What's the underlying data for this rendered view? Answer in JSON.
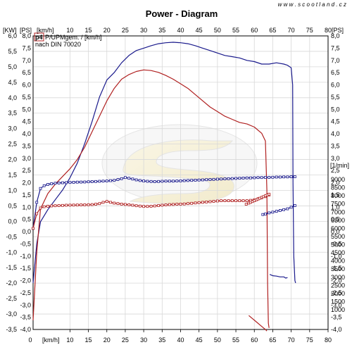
{
  "chart_data": {
    "type": "line",
    "title": "Power - Diagram",
    "watermark": "w w w . s c o o t l a n d . c z",
    "legend_tag": "p4",
    "legend_lines": [
      "P/UPMgem. / [km/h]",
      "nach DIN 70020"
    ],
    "x_unit": "[km/h]",
    "y_kw_unit": "[KW]",
    "y_ps_unit": "[PS]",
    "rpm_unit": "[1/min]",
    "xlim": [
      0,
      80
    ],
    "x_ticks": [
      "10",
      "15",
      "20",
      "25",
      "30",
      "35",
      "40",
      "45",
      "50",
      "55",
      "60",
      "65",
      "70",
      "75",
      "80"
    ],
    "y_kw_range": [
      -3.5,
      6.0
    ],
    "y_kw_ticks": [
      "6,0",
      "5,5",
      "5,0",
      "4,5",
      "4,0",
      "3,5",
      "3,0",
      "2,5",
      "2,0",
      "1,5",
      "1,0",
      "0,5",
      "0,0",
      "-0,5",
      "-1,0",
      "-1,5",
      "-2,0",
      "-2,5",
      "-3,0",
      "-3,5"
    ],
    "y_ps_range": [
      -4.0,
      8.0
    ],
    "y_ps_ticks": [
      "8,0",
      "7,5",
      "7,0",
      "6,5",
      "6,0",
      "5,5",
      "5,0",
      "4,5",
      "4,0",
      "3,5",
      "3,0",
      "2,5",
      "2,0",
      "1,5",
      "1,0",
      "0,5",
      "0,0",
      "-0,5",
      "-1,0",
      "-1,5",
      "-2,0",
      "-2,5",
      "-3,0",
      "-3,5",
      "-4,0"
    ],
    "rpm_range": [
      1000,
      9000
    ],
    "rpm_ticks": [
      "9000",
      "8500",
      "8000",
      "7500",
      "7000",
      "6500",
      "6000",
      "5500",
      "5000",
      "4500",
      "4000",
      "3500",
      "3000",
      "2500",
      "2000",
      "1500",
      "1000"
    ],
    "grid": true,
    "colors": {
      "power": "#1a1a8c",
      "torque": "#b02020",
      "grid": "#d8d8d8",
      "axis": "#000000",
      "tag": "#b02020"
    },
    "series": [
      {
        "key": "power_ps",
        "color": "#1a1a8c",
        "axis": "ps",
        "x": [
          0,
          1,
          2,
          4,
          6,
          8,
          10,
          12,
          14,
          16,
          18,
          20,
          22,
          24,
          26,
          28,
          30,
          32,
          34,
          36,
          38,
          40,
          42,
          44,
          46,
          48,
          50,
          52,
          54,
          56,
          58,
          60,
          62,
          64,
          66,
          68,
          69,
          70,
          70.4,
          70.5,
          70.7,
          71,
          71.2
        ],
        "y": [
          -2.1,
          -0.5,
          0.4,
          0.9,
          1.3,
          1.7,
          2.2,
          2.8,
          3.6,
          4.5,
          5.5,
          6.2,
          6.5,
          6.9,
          7.2,
          7.4,
          7.5,
          7.6,
          7.68,
          7.72,
          7.74,
          7.72,
          7.68,
          7.6,
          7.5,
          7.4,
          7.3,
          7.2,
          7.15,
          7.1,
          7.0,
          6.95,
          6.85,
          6.85,
          6.9,
          6.85,
          6.8,
          6.7,
          6.0,
          2.0,
          -1.0,
          -2.0,
          -2.1
        ]
      },
      {
        "key": "power_ps_tail",
        "color": "#1a1a8c",
        "axis": "ps",
        "x": [
          64.2,
          65,
          66,
          67,
          68,
          68.5,
          69
        ],
        "y": [
          -1.75,
          -1.8,
          -1.82,
          -1.85,
          -1.85,
          -1.9,
          -1.88
        ]
      },
      {
        "key": "torque_kw",
        "color": "#b02020",
        "axis": "kw",
        "x": [
          0,
          1,
          2,
          4,
          6,
          8,
          10,
          12,
          14,
          16,
          18,
          20,
          22,
          24,
          26,
          28,
          30,
          32,
          34,
          36,
          38,
          40,
          42,
          44,
          46,
          48,
          50,
          52,
          54,
          56,
          58,
          60,
          62,
          63,
          63.4,
          63.6,
          63.8,
          64
        ],
        "y": [
          -3.2,
          -1.0,
          0.4,
          0.9,
          1.2,
          1.45,
          1.7,
          2.0,
          2.4,
          2.9,
          3.4,
          3.9,
          4.3,
          4.6,
          4.75,
          4.85,
          4.9,
          4.88,
          4.82,
          4.72,
          4.6,
          4.45,
          4.3,
          4.1,
          3.9,
          3.7,
          3.55,
          3.4,
          3.3,
          3.2,
          3.15,
          3.05,
          2.85,
          2.6,
          1.0,
          -2.0,
          -3.3,
          -3.45
        ]
      },
      {
        "key": "torque_kw_tail",
        "color": "#b02020",
        "axis": "kw",
        "x": [
          58.5,
          59.5,
          60.5,
          61.5,
          62.5,
          63,
          63.4
        ],
        "y": [
          -3.05,
          -3.15,
          -3.25,
          -3.35,
          -3.45,
          -3.5,
          -3.55
        ]
      },
      {
        "key": "rpm_blue",
        "color": "#1a1a8c",
        "axis": "rpm",
        "markers": true,
        "x": [
          0,
          1,
          2,
          3,
          4,
          5,
          6,
          7,
          8,
          9,
          10,
          11,
          12,
          13,
          14,
          15,
          16,
          17,
          18,
          19,
          20,
          21,
          22,
          23,
          24,
          25,
          26,
          27,
          28,
          29,
          30,
          31,
          32,
          33,
          34,
          35,
          36,
          37,
          38,
          39,
          40,
          41,
          42,
          43,
          44,
          45,
          46,
          47,
          48,
          49,
          50,
          51,
          52,
          53,
          54,
          55,
          56,
          57,
          58,
          59,
          60,
          61,
          62,
          63,
          64,
          65,
          66,
          67,
          68,
          69,
          70,
          71
        ],
        "y": [
          6000,
          7600,
          8450,
          8620,
          8700,
          8740,
          8770,
          8790,
          8800,
          8810,
          8820,
          8830,
          8840,
          8845,
          8850,
          8860,
          8870,
          8880,
          8890,
          8900,
          8910,
          8930,
          8950,
          9000,
          9050,
          9120,
          9080,
          9030,
          8980,
          8940,
          8910,
          8890,
          8880,
          8870,
          8880,
          8890,
          8900,
          8900,
          8900,
          8910,
          8920,
          8930,
          8940,
          8950,
          8960,
          8970,
          8980,
          8990,
          9000,
          9010,
          9020,
          9030,
          9040,
          9050,
          9060,
          9070,
          9080,
          9090,
          9100,
          9100,
          9110,
          9120,
          9120,
          9130,
          9130,
          9140,
          9150,
          9150,
          9160,
          9160,
          9170,
          9170
        ]
      },
      {
        "key": "rpm_blue_drop",
        "color": "#1a1a8c",
        "axis": "rpm",
        "markers": true,
        "x": [
          62.3,
          63,
          64,
          65,
          66,
          67,
          68,
          69,
          70,
          71
        ],
        "y": [
          6850,
          6880,
          6950,
          7000,
          7050,
          7100,
          7150,
          7200,
          7300,
          7400
        ]
      },
      {
        "key": "rpm_red",
        "color": "#b02020",
        "axis": "rpm",
        "markers": true,
        "x": [
          0,
          1,
          2,
          3,
          4,
          5,
          6,
          7,
          8,
          9,
          10,
          11,
          12,
          13,
          14,
          15,
          16,
          17,
          18,
          19,
          20,
          21,
          22,
          23,
          24,
          25,
          26,
          27,
          28,
          29,
          30,
          31,
          32,
          33,
          34,
          35,
          36,
          37,
          38,
          39,
          40,
          41,
          42,
          43,
          44,
          45,
          46,
          47,
          48,
          49,
          50,
          51,
          52,
          53,
          54,
          55,
          56,
          57,
          58,
          59,
          60,
          61,
          62,
          63,
          64
        ],
        "y": [
          6000,
          6900,
          7250,
          7330,
          7360,
          7380,
          7390,
          7400,
          7410,
          7420,
          7425,
          7430,
          7435,
          7440,
          7445,
          7450,
          7460,
          7480,
          7520,
          7600,
          7660,
          7600,
          7550,
          7520,
          7490,
          7470,
          7450,
          7420,
          7390,
          7370,
          7350,
          7350,
          7360,
          7380,
          7400,
          7420,
          7440,
          7460,
          7470,
          7480,
          7490,
          7500,
          7520,
          7540,
          7560,
          7580,
          7600,
          7620,
          7640,
          7660,
          7680,
          7700,
          7700,
          7700,
          7700,
          7700,
          7700,
          7700,
          7700,
          7720,
          7760,
          7820,
          7880,
          7950,
          8050
        ]
      },
      {
        "key": "rpm_red_end",
        "color": "#b02020",
        "axis": "rpm",
        "markers": true,
        "x": [
          57.8,
          58.5,
          59,
          59.5,
          60,
          60.5,
          61,
          61.5,
          62,
          62.5,
          63,
          63.5,
          64
        ],
        "y": [
          7480,
          7550,
          7600,
          7650,
          7700,
          7750,
          7800,
          7850,
          7900,
          7950,
          8000,
          8050,
          8100
        ]
      }
    ]
  }
}
